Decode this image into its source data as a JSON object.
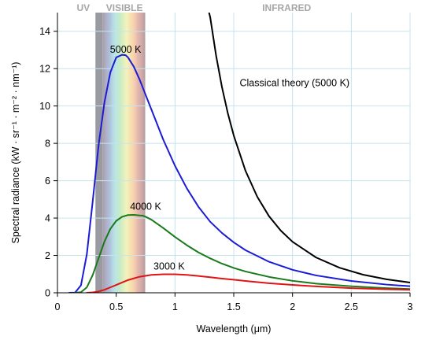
{
  "chart_data": {
    "type": "line",
    "xlabel": "Wavelength (μm)",
    "ylabel": "Spectral radiance (kW · sr⁻¹ · m⁻² · nm⁻¹)",
    "xlim": [
      0,
      3
    ],
    "ylim": [
      0,
      15
    ],
    "x_ticks": [
      0,
      0.5,
      1,
      1.5,
      2,
      2.5,
      3
    ],
    "x_tick_labels": [
      "0",
      "0.5",
      "1",
      "1.5",
      "2",
      "2.5",
      "3"
    ],
    "y_ticks": [
      0,
      2,
      4,
      6,
      8,
      10,
      12,
      14
    ],
    "y_tick_labels": [
      "0",
      "2",
      "4",
      "6",
      "8",
      "10",
      "12",
      "14"
    ],
    "grid": true,
    "bands": [
      {
        "label": "UV",
        "x_range": [
          0,
          0.38
        ]
      },
      {
        "label": "VISIBLE",
        "x_range": [
          0.38,
          0.75
        ]
      },
      {
        "label": "INFRARED",
        "x_range": [
          0.75,
          3
        ]
      }
    ],
    "series": [
      {
        "name": "5000 K",
        "color": "#1c1cd6",
        "x": [
          0.1,
          0.15,
          0.2,
          0.25,
          0.3,
          0.35,
          0.4,
          0.45,
          0.5,
          0.55,
          0.58,
          0.6,
          0.65,
          0.7,
          0.75,
          0.8,
          0.9,
          1.0,
          1.1,
          1.2,
          1.3,
          1.4,
          1.5,
          1.6,
          1.8,
          2.0,
          2.2,
          2.5,
          2.8,
          3.0
        ],
        "y": [
          0.0,
          0.01,
          0.4,
          2.06,
          4.9,
          7.9,
          10.2,
          11.8,
          12.6,
          12.74,
          12.72,
          12.6,
          12.1,
          11.4,
          10.6,
          9.8,
          8.2,
          6.8,
          5.6,
          4.6,
          3.8,
          3.2,
          2.7,
          2.28,
          1.66,
          1.23,
          0.93,
          0.63,
          0.44,
          0.35
        ]
      },
      {
        "name": "4000 K",
        "color": "#1a7a1a",
        "x": [
          0.15,
          0.2,
          0.25,
          0.3,
          0.35,
          0.4,
          0.45,
          0.5,
          0.55,
          0.6,
          0.65,
          0.7,
          0.725,
          0.75,
          0.8,
          0.9,
          1.0,
          1.1,
          1.2,
          1.3,
          1.4,
          1.5,
          1.6,
          1.8,
          2.0,
          2.2,
          2.5,
          2.8,
          3.0
        ],
        "y": [
          0.0,
          0.03,
          0.29,
          0.95,
          1.85,
          2.74,
          3.42,
          3.85,
          4.07,
          4.16,
          4.17,
          4.14,
          4.13,
          4.07,
          3.91,
          3.47,
          2.99,
          2.55,
          2.16,
          1.84,
          1.56,
          1.33,
          1.14,
          0.85,
          0.64,
          0.49,
          0.35,
          0.25,
          0.2
        ]
      },
      {
        "name": "3000 K",
        "color": "#e01414",
        "x": [
          0.25,
          0.3,
          0.35,
          0.4,
          0.45,
          0.5,
          0.6,
          0.7,
          0.8,
          0.9,
          0.97,
          1.0,
          1.1,
          1.2,
          1.3,
          1.4,
          1.5,
          1.6,
          1.8,
          2.0,
          2.2,
          2.5,
          2.8,
          3.0
        ],
        "y": [
          0.0,
          0.02,
          0.07,
          0.16,
          0.29,
          0.42,
          0.68,
          0.86,
          0.96,
          0.99,
          0.99,
          0.99,
          0.96,
          0.9,
          0.83,
          0.76,
          0.7,
          0.63,
          0.51,
          0.42,
          0.34,
          0.25,
          0.19,
          0.16
        ]
      },
      {
        "name": "Classical theory (5000 K)",
        "color": "#000000",
        "x": [
          1.29,
          1.3,
          1.35,
          1.4,
          1.45,
          1.5,
          1.6,
          1.7,
          1.8,
          1.9,
          2.0,
          2.2,
          2.4,
          2.6,
          2.8,
          3.0
        ],
        "y": [
          15.0,
          14.74,
          12.69,
          11.0,
          9.6,
          8.42,
          6.53,
          5.14,
          4.1,
          3.33,
          2.73,
          1.89,
          1.34,
          0.97,
          0.72,
          0.55
        ]
      }
    ],
    "annotations": [
      {
        "text": "5000 K",
        "x": 0.58,
        "y": 12.85
      },
      {
        "text": "4000 K",
        "x": 0.75,
        "y": 4.45
      },
      {
        "text": "3000 K",
        "x": 0.95,
        "y": 1.25
      },
      {
        "text": "Classical theory (5000 K)",
        "x": 1.55,
        "y": 11.05
      }
    ]
  }
}
